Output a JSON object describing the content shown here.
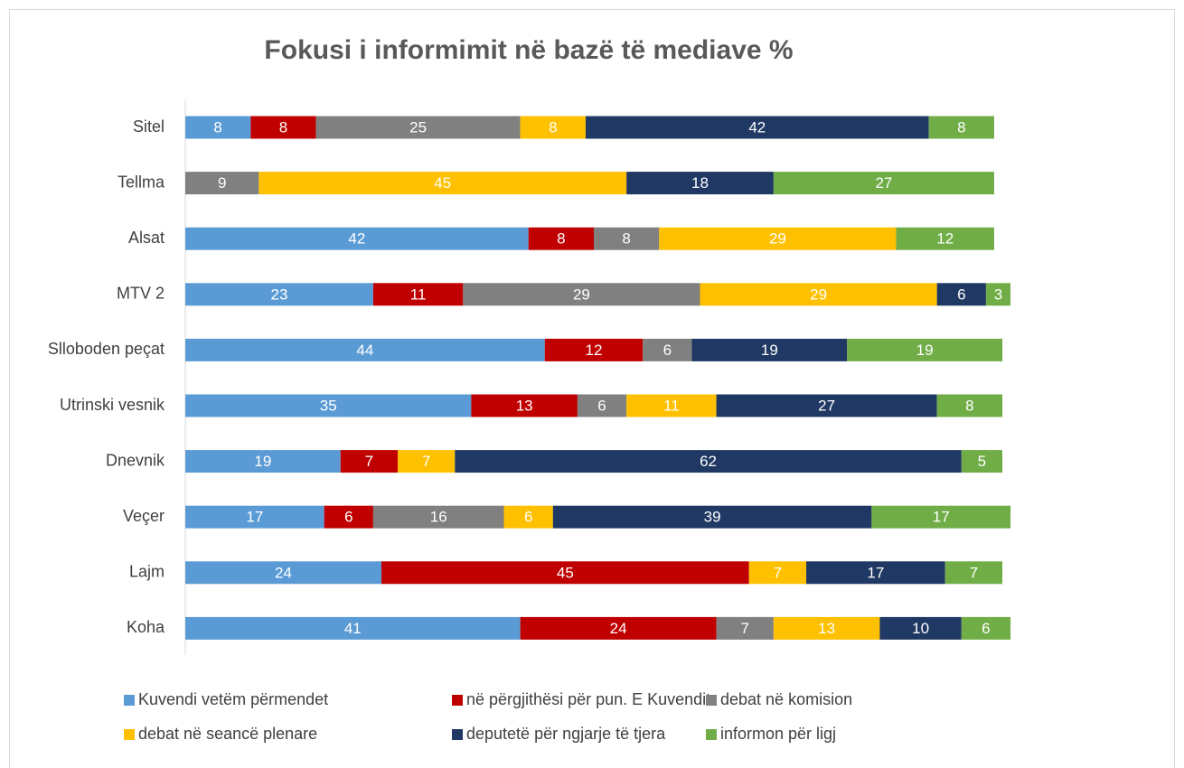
{
  "chart_data": {
    "type": "stacked_bar_horizontal",
    "title": "Fokusi i informimit në bazë të mediave %",
    "categories": [
      "Sitel",
      "Tellma",
      "Alsat",
      "MTV 2",
      "Slloboden peçat",
      "Utrinski vesnik",
      "Dnevnik",
      "Veçer",
      "Lajm",
      "Koha"
    ],
    "series": [
      {
        "name": "Kuvendi vetëm përmendet",
        "color": "#5b9bd5",
        "values": [
          8,
          null,
          42,
          23,
          44,
          35,
          19,
          17,
          24,
          41
        ]
      },
      {
        "name": "në përgjithësi për pun. E Kuvendit",
        "color": "#c00000",
        "values": [
          8,
          null,
          8,
          11,
          12,
          13,
          7,
          6,
          45,
          24
        ]
      },
      {
        "name": "debat në komision",
        "color": "#808080",
        "values": [
          25,
          9,
          8,
          29,
          6,
          6,
          null,
          16,
          null,
          7
        ]
      },
      {
        "name": "debat në seancë plenare",
        "color": "#ffc000",
        "values": [
          8,
          45,
          29,
          29,
          null,
          11,
          7,
          6,
          7,
          13
        ]
      },
      {
        "name": "deputetë për ngjarje të tjera",
        "color": "#203864",
        "values": [
          42,
          18,
          null,
          6,
          19,
          27,
          62,
          39,
          17,
          10
        ]
      },
      {
        "name": "informon për ligj",
        "color": "#70ad47",
        "values": [
          8,
          27,
          12,
          3,
          19,
          8,
          5,
          17,
          7,
          6
        ]
      }
    ],
    "xlim": [
      0,
      100
    ],
    "legend": "bottom"
  }
}
